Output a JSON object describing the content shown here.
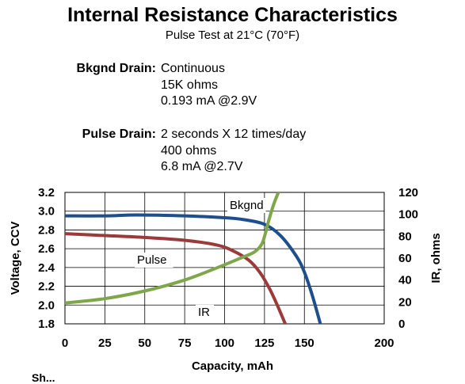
{
  "header": {
    "title": "Internal Resistance Characteristics",
    "subtitle": "Pulse Test at 21°C (70°F)"
  },
  "conditions": {
    "background": {
      "label": "Bkgnd Drain:",
      "lines": [
        "Continuous",
        "15K ohms",
        "0.193 mA @2.9V"
      ]
    },
    "pulse": {
      "label": "Pulse Drain:",
      "lines": [
        "2 seconds X 12 times/day",
        "400 ohms",
        "6.8 mA @2.7V"
      ]
    }
  },
  "footer_cut_text": "Sh...",
  "chart_data": {
    "type": "line",
    "xlabel": "Capacity, mAh",
    "ylabel": "Voltage, CCV",
    "y2label": "IR, ohms",
    "xlim": [
      0,
      200
    ],
    "ylim": [
      1.8,
      3.2
    ],
    "y2lim": [
      0,
      120
    ],
    "xticks": [
      0,
      25,
      50,
      75,
      100,
      125,
      150,
      200
    ],
    "yticks": [
      1.8,
      2.0,
      2.2,
      2.4,
      2.6,
      2.8,
      3.0,
      3.2
    ],
    "y2ticks": [
      0,
      20,
      40,
      60,
      80,
      100,
      120
    ],
    "grid": true,
    "series": [
      {
        "name": "Bkgnd",
        "axis": "left",
        "color": "#1F4E8C",
        "points": [
          [
            0,
            2.95
          ],
          [
            25,
            2.95
          ],
          [
            45,
            2.96
          ],
          [
            75,
            2.95
          ],
          [
            100,
            2.93
          ],
          [
            112,
            2.91
          ],
          [
            125,
            2.86
          ],
          [
            135,
            2.74
          ],
          [
            145,
            2.52
          ],
          [
            150,
            2.35
          ],
          [
            155,
            2.1
          ],
          [
            160,
            1.8
          ]
        ]
      },
      {
        "name": "Pulse",
        "axis": "left",
        "color": "#9B3A3A",
        "points": [
          [
            0,
            2.76
          ],
          [
            25,
            2.74
          ],
          [
            50,
            2.72
          ],
          [
            75,
            2.69
          ],
          [
            95,
            2.64
          ],
          [
            105,
            2.58
          ],
          [
            115,
            2.48
          ],
          [
            122,
            2.35
          ],
          [
            128,
            2.18
          ],
          [
            133,
            2.0
          ],
          [
            138,
            1.8
          ]
        ]
      },
      {
        "name": "IR",
        "axis": "right",
        "color": "#7EA64A",
        "points": [
          [
            0,
            19
          ],
          [
            25,
            23
          ],
          [
            50,
            30
          ],
          [
            75,
            40
          ],
          [
            95,
            51
          ],
          [
            110,
            60
          ],
          [
            118,
            65
          ],
          [
            122,
            70
          ],
          [
            124,
            75
          ],
          [
            126,
            85
          ],
          [
            128,
            96
          ],
          [
            131,
            110
          ],
          [
            134,
            121
          ]
        ]
      }
    ]
  }
}
